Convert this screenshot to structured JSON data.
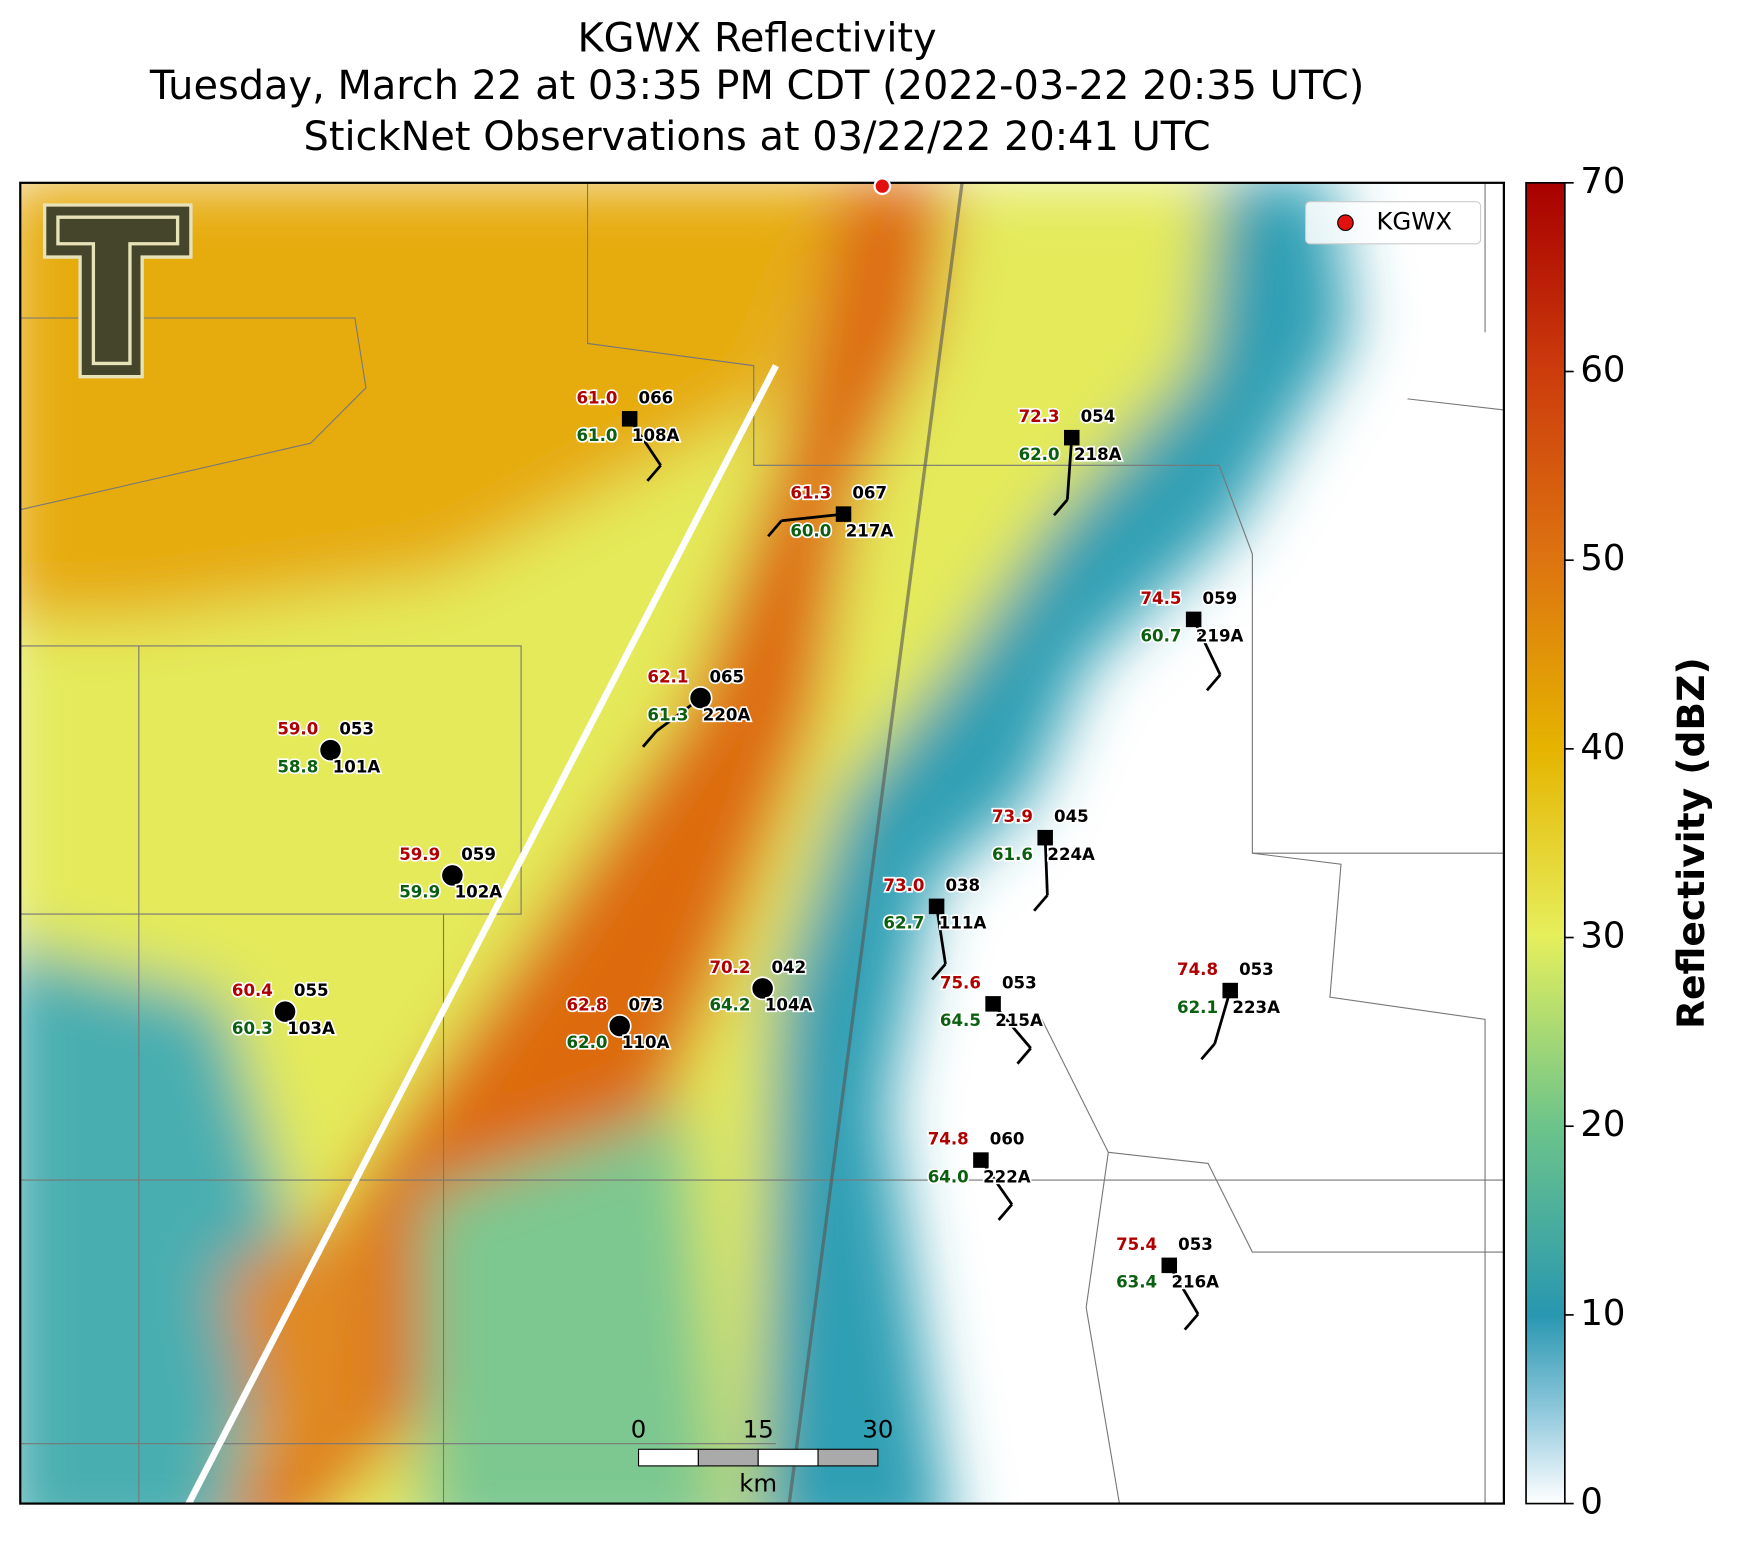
{
  "header": {
    "title": "KGWX Reflectivity",
    "subtitle": "Tuesday, March 22 at 03:35 PM CDT (2022-03-22 20:35 UTC)",
    "observations": "StickNet Observations at 03/22/22 20:41 UTC"
  },
  "legend": {
    "label": "KGWX"
  },
  "colorbar": {
    "label": "Reflectivity (dBZ)",
    "range": [
      0,
      70
    ],
    "ticks": [
      0,
      10,
      20,
      30,
      40,
      50,
      60,
      70
    ]
  },
  "scale_bar": {
    "ticks": [
      "0",
      "15",
      "30"
    ],
    "unit": "km"
  },
  "stations": [
    {
      "id": "108A",
      "temp": "61.0",
      "dew": "61.0",
      "code": "066"
    },
    {
      "id": "217A",
      "temp": "61.3",
      "dew": "60.0",
      "code": "067"
    },
    {
      "id": "218A",
      "temp": "72.3",
      "dew": "62.0",
      "code": "054"
    },
    {
      "id": "219A",
      "temp": "74.5",
      "dew": "60.7",
      "code": "059"
    },
    {
      "id": "101A",
      "temp": "59.0",
      "dew": "58.8",
      "code": "053"
    },
    {
      "id": "102A",
      "temp": "59.9",
      "dew": "59.9",
      "code": "059"
    },
    {
      "id": "103A",
      "temp": "60.4",
      "dew": "60.3",
      "code": "055"
    },
    {
      "id": "110A",
      "temp": "62.8",
      "dew": "62.0",
      "code": "073"
    },
    {
      "id": "104A",
      "temp": "70.2",
      "dew": "64.2",
      "code": "042"
    },
    {
      "id": "224A",
      "temp": "73.9",
      "dew": "61.6",
      "code": "045"
    },
    {
      "id": "111A",
      "temp": "73.0",
      "dew": "62.7",
      "code": "038"
    },
    {
      "id": "215A",
      "temp": "75.6",
      "dew": "64.5",
      "code": "053"
    },
    {
      "id": "223A",
      "temp": "74.8",
      "dew": "62.1",
      "code": "053"
    },
    {
      "id": "222A",
      "temp": "74.8",
      "dew": "64.0",
      "code": "060"
    },
    {
      "id": "216A",
      "temp": "75.4",
      "dew": "63.4",
      "code": "053"
    },
    {
      "id": "220A",
      "temp": "62.1",
      "dew": "61.3",
      "code": "065"
    }
  ]
}
